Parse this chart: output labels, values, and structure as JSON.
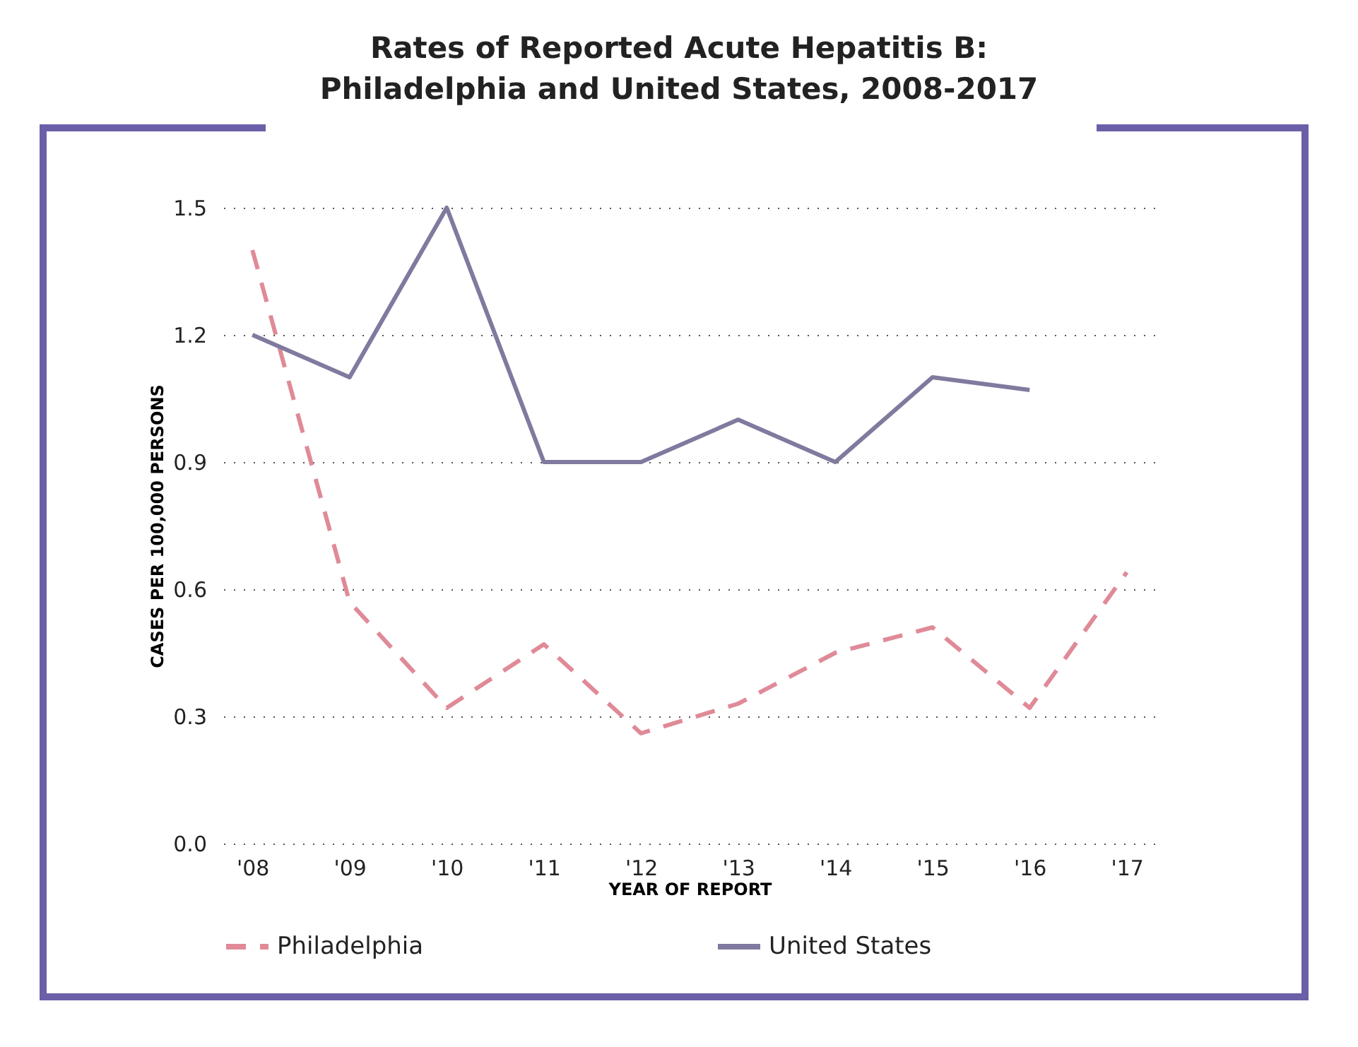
{
  "chart_data": {
    "type": "line",
    "title": "Rates of Reported Acute Hepatitis B:\nPhiladelphia and United States, 2008-2017",
    "xlabel": "YEAR OF REPORT",
    "ylabel": "CASES PER 100,000 PERSONS",
    "categories": [
      "'08",
      "'09",
      "'10",
      "'11",
      "'12",
      "'13",
      "'14",
      "'15",
      "'16",
      "'17"
    ],
    "series": [
      {
        "name": "Philadelphia",
        "color": "#e08a98",
        "line_style": "dashed",
        "values": [
          1.4,
          0.57,
          0.32,
          0.47,
          0.26,
          0.33,
          0.45,
          0.51,
          0.32,
          0.64
        ]
      },
      {
        "name": "United States",
        "color": "#7f7a9e",
        "line_style": "solid",
        "values": [
          1.2,
          1.1,
          1.5,
          0.9,
          0.9,
          1.0,
          0.9,
          1.1,
          1.07,
          null
        ]
      }
    ],
    "ylim": [
      0,
      1.5
    ],
    "yticks": [
      {
        "value": 0,
        "label": "0.0"
      },
      0.3,
      0.6,
      0.9,
      1.2,
      1.5
    ],
    "grid": "y",
    "legend": "bottom",
    "marker": "none"
  }
}
